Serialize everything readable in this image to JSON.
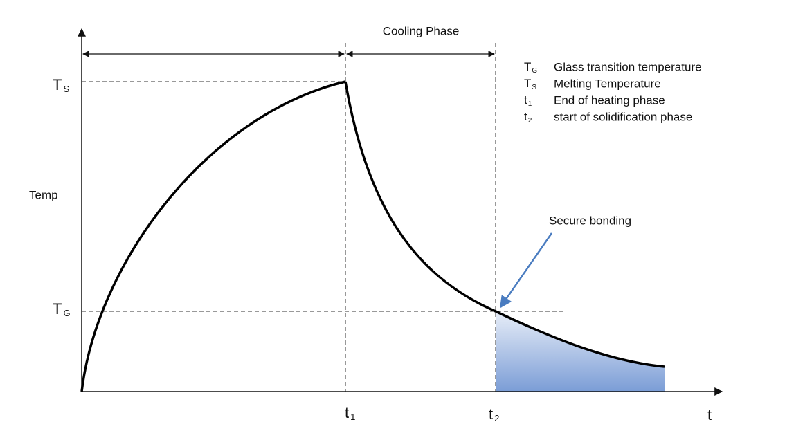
{
  "axes": {
    "y_label": "Temp",
    "x_label": "t"
  },
  "levels": [
    {
      "main": "T",
      "sub": "S"
    },
    {
      "main": "T",
      "sub": "G"
    }
  ],
  "times": [
    {
      "main": "t",
      "sub": "1"
    },
    {
      "main": "t",
      "sub": "2"
    }
  ],
  "phase_label": "Cooling Phase",
  "annotation": "Secure bonding",
  "legend": [
    {
      "symbol": {
        "main": "T",
        "sub": "G"
      },
      "text": "Glass transition temperature"
    },
    {
      "symbol": {
        "main": "T",
        "sub": "S"
      },
      "text": "Melting Temperature"
    },
    {
      "symbol": {
        "main": "t",
        "sub": "1"
      },
      "text": "End of heating phase"
    },
    {
      "symbol": {
        "main": "t",
        "sub": "2"
      },
      "text": "start of solidification phase"
    }
  ]
}
